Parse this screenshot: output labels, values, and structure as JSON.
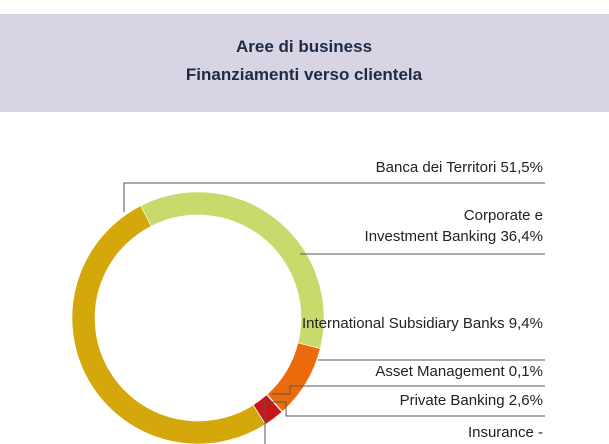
{
  "chart_data": {
    "type": "donut",
    "title": "Aree di business",
    "subtitle": "Finanziamenti verso clientela",
    "categories": [
      "Banca dei Territori",
      "Corporate e Investment Banking",
      "International Subsidiary Banks",
      "Asset Management",
      "Private Banking",
      "Insurance"
    ],
    "values": [
      51.5,
      36.4,
      9.4,
      0.1,
      2.6,
      0
    ],
    "value_labels": [
      "51,5%",
      "36,4%",
      "9,4%",
      "0,1%",
      "2,6%",
      "-"
    ],
    "colors": [
      "#d4a80a",
      "#c9da6c",
      "#ec6a0c",
      "#2e7d32",
      "#c8171c",
      "#9e9e9e"
    ]
  }
}
